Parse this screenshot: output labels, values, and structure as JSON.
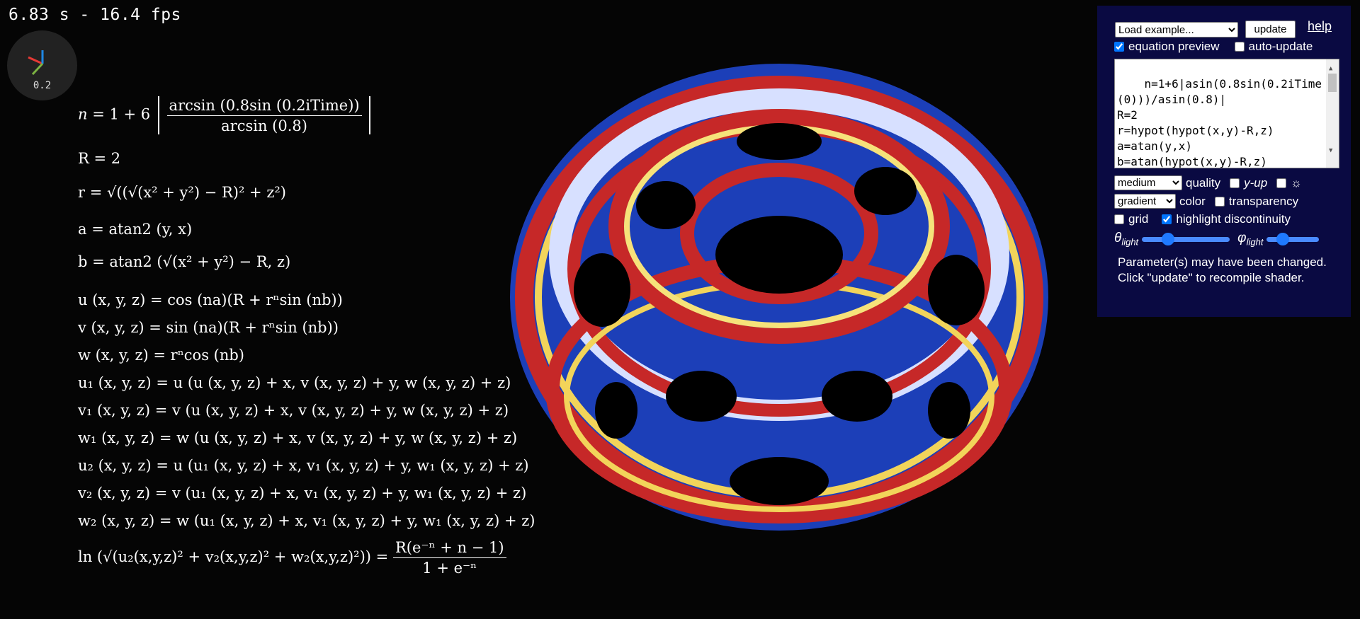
{
  "status": {
    "fps_text": "6.83 s - 16.4 fps"
  },
  "axes_widget": {
    "scale": "0.2"
  },
  "equations": [
    {
      "lhs": "n",
      "rhs": "= 1 + 6",
      "num": "arcsin (0.8sin (0.2iTime))",
      "den": "arcsin (0.8)"
    },
    {
      "text": "R = 2"
    },
    {
      "text": "r = √((√(x² + y²) − R)² + z²)"
    },
    {
      "text": "a = atan2 (y, x)"
    },
    {
      "text": "b = atan2 (√(x² + y²) − R, z)"
    },
    {
      "text": "u (x, y, z) = cos (na)(R + rⁿsin (nb))"
    },
    {
      "text": "v (x, y, z) = sin (na)(R + rⁿsin (nb))"
    },
    {
      "text": "w (x, y, z) = rⁿcos (nb)"
    },
    {
      "text": "u₁ (x, y, z) = u (u (x, y, z) + x, v (x, y, z) + y, w (x, y, z) + z)"
    },
    {
      "text": "v₁ (x, y, z) = v (u (x, y, z) + x, v (x, y, z) + y, w (x, y, z) + z)"
    },
    {
      "text": "w₁ (x, y, z) = w (u (x, y, z) + x, v (x, y, z) + y, w (x, y, z) + z)"
    },
    {
      "text": "u₂ (x, y, z) = u (u₁ (x, y, z) + x, v₁ (x, y, z) + y, w₁ (x, y, z) + z)"
    },
    {
      "text": "v₂ (x, y, z) = v (u₁ (x, y, z) + x, v₁ (x, y, z) + y, w₁ (x, y, z) + z)"
    },
    {
      "text": "w₂ (x, y, z) = w (u₁ (x, y, z) + x, v₁ (x, y, z) + y, w₁ (x, y, z) + z)"
    },
    {
      "lhs": "ln (√(u₂(x,y,z)² + v₂(x,y,z)² + w₂(x,y,z)²)) =",
      "num": "R(e⁻ⁿ + n − 1)",
      "den": "1 + e⁻ⁿ"
    }
  ],
  "panel": {
    "example_select": "Load example...",
    "update_label": "update",
    "help_label": "help",
    "equation_preview_label": "equation preview",
    "equation_preview_checked": true,
    "auto_update_label": "auto-update",
    "auto_update_checked": false,
    "code": "n=1+6|asin(0.8sin(0.2iTime(0)))/asin(0.8)|\nR=2\nr=hypot(hypot(x,y)-R,z)\na=atan(y,x)\nb=atan(hypot(x,y)-R,z)\nu(x,y,z)=cos(na)(R+r^nsin(n",
    "quality_select": "medium",
    "quality_label": "quality",
    "y_up_label": "y-up",
    "y_up_checked": false,
    "light_checked": false,
    "light_icon": "sun-icon",
    "color_select": "gradient",
    "color_label": "color",
    "transparency_label": "transparency",
    "transparency_checked": false,
    "grid_label": "grid",
    "grid_checked": false,
    "highlight_label": "highlight discontinuity",
    "highlight_checked": true,
    "theta_label": "θ",
    "theta_sub": "light",
    "theta_value": 0.3,
    "phi_label": "φ",
    "phi_sub": "light",
    "phi_value": 0.3,
    "notice": "Parameter(s) may have been changed. Click \"update\" to recompile shader."
  }
}
